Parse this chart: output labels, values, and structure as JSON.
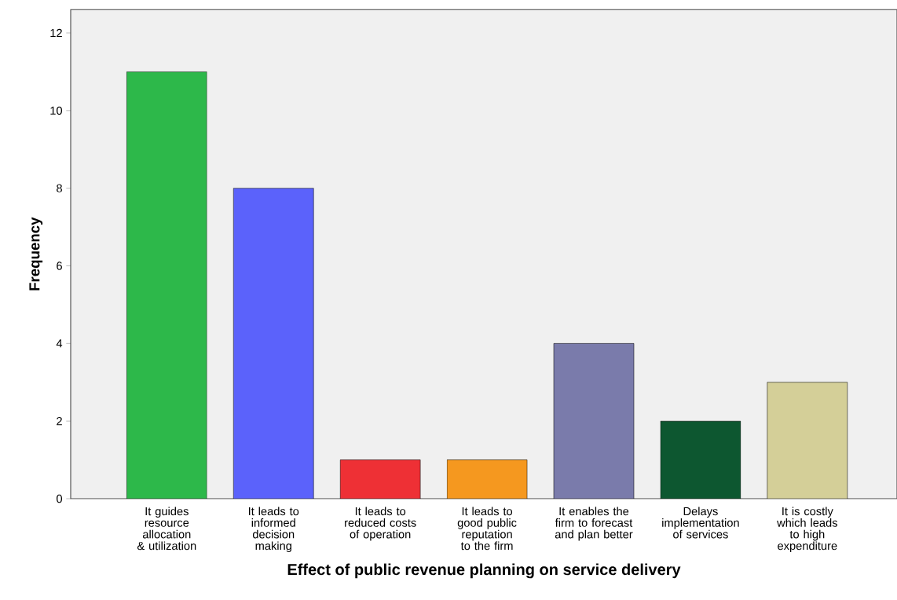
{
  "chart_data": {
    "type": "bar",
    "xlabel": "Effect of public revenue planning on service delivery",
    "ylabel": "Frequency",
    "categories": [
      "It guides resource allocation & utilization",
      "It leads to informed decision making",
      "It leads to reduced costs of operation",
      "It leads to good public reputation to the firm",
      "It enables the firm to forecast and plan better",
      "Delays implementation of services",
      "It is costly which leads to high expenditure"
    ],
    "values": [
      11,
      8,
      1,
      1,
      4,
      2,
      3
    ],
    "colors": [
      "#2db84a",
      "#5b62fb",
      "#ee3035",
      "#f5981f",
      "#7a7bab",
      "#0d5730",
      "#d4cf98"
    ],
    "ylim": [
      0,
      12.6
    ],
    "yticks": [
      0,
      2,
      4,
      6,
      8,
      10,
      12
    ],
    "grid": false
  }
}
